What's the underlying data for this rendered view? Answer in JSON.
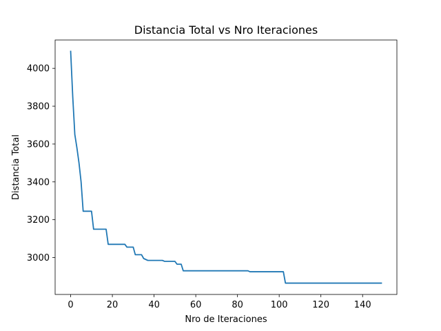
{
  "chart_data": {
    "type": "line",
    "title": "Distancia Total vs Nro Iteraciones",
    "xlabel": "Nro de Iteraciones",
    "ylabel": "Distancia Total",
    "xlim": [
      -7.45,
      156.45
    ],
    "ylim": [
      2805,
      4150
    ],
    "xticks": [
      0,
      20,
      40,
      60,
      80,
      100,
      120,
      140
    ],
    "yticks": [
      3000,
      3200,
      3400,
      3600,
      3800,
      4000
    ],
    "grid": false,
    "line_color": "#1f77b4",
    "series": [
      {
        "x": [
          0,
          1,
          2,
          3,
          4,
          5,
          6,
          7,
          8,
          9,
          10,
          11,
          12,
          13,
          14,
          15,
          16,
          17,
          18,
          19,
          20,
          21,
          22,
          23,
          24,
          25,
          26,
          27,
          28,
          29,
          30,
          31,
          32,
          33,
          34,
          35,
          36,
          37,
          38,
          39,
          40,
          41,
          42,
          43,
          44,
          45,
          46,
          47,
          48,
          49,
          50,
          51,
          52,
          53,
          54,
          55,
          60,
          70,
          80,
          85,
          86,
          90,
          95,
          100,
          102,
          103,
          110,
          120,
          130,
          140,
          149
        ],
        "values": [
          4090,
          3850,
          3650,
          3580,
          3500,
          3400,
          3245,
          3245,
          3245,
          3245,
          3245,
          3150,
          3150,
          3150,
          3150,
          3150,
          3150,
          3150,
          3070,
          3070,
          3070,
          3070,
          3070,
          3070,
          3070,
          3070,
          3070,
          3055,
          3055,
          3055,
          3055,
          3015,
          3015,
          3015,
          3015,
          2995,
          2990,
          2985,
          2985,
          2985,
          2985,
          2985,
          2985,
          2985,
          2985,
          2980,
          2980,
          2980,
          2980,
          2980,
          2980,
          2965,
          2965,
          2965,
          2930,
          2930,
          2930,
          2930,
          2930,
          2930,
          2925,
          2925,
          2925,
          2925,
          2925,
          2865,
          2865,
          2865,
          2865,
          2865,
          2865
        ]
      }
    ]
  }
}
